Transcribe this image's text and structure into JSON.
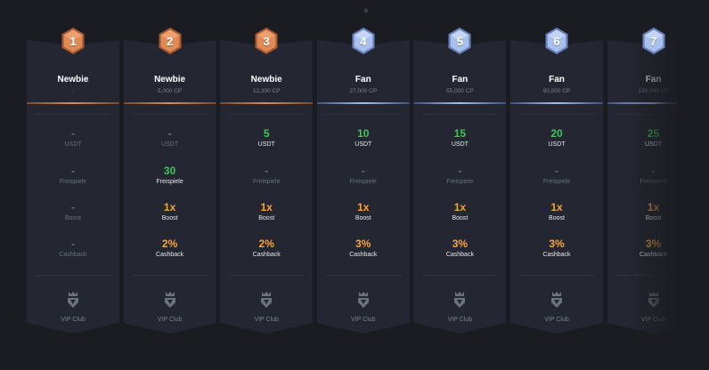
{
  "colors": {
    "background": "#1a1c22",
    "card": "#242731",
    "bronze": "#e08a56",
    "silver": "#a9c0ec",
    "green": "#3fc45c",
    "orange": "#f7a43b"
  },
  "labels": {
    "usdt": "USDT",
    "freespins": "Freispiele",
    "boost": "Boost",
    "cashback": "Cashback",
    "vip": "VIP Club"
  },
  "tiers": [
    {
      "level": "1",
      "name": "Newbie",
      "cp": "-",
      "usdt": "-",
      "freespins": "-",
      "boost": "-",
      "cashback": "-",
      "tier": "bronze",
      "vip_icon": "crown-shield-icon"
    },
    {
      "level": "2",
      "name": "Newbie",
      "cp": "5,000 CP",
      "usdt": "-",
      "freespins": "30",
      "boost": "1x",
      "cashback": "2%",
      "tier": "bronze",
      "vip_icon": "crown-shield-icon"
    },
    {
      "level": "3",
      "name": "Newbie",
      "cp": "12,300 CP",
      "usdt": "5",
      "freespins": "-",
      "boost": "1x",
      "cashback": "2%",
      "tier": "bronze",
      "vip_icon": "crown-shield-icon"
    },
    {
      "level": "4",
      "name": "Fan",
      "cp": "27,000 CP",
      "usdt": "10",
      "freespins": "-",
      "boost": "1x",
      "cashback": "3%",
      "tier": "silver",
      "vip_icon": "crown-shield-icon"
    },
    {
      "level": "5",
      "name": "Fan",
      "cp": "55,000 CP",
      "usdt": "15",
      "freespins": "-",
      "boost": "1x",
      "cashback": "3%",
      "tier": "silver",
      "vip_icon": "crown-shield-icon"
    },
    {
      "level": "6",
      "name": "Fan",
      "cp": "90,000 CP",
      "usdt": "20",
      "freespins": "-",
      "boost": "1x",
      "cashback": "3%",
      "tier": "silver",
      "vip_icon": "crown-shield-icon"
    },
    {
      "level": "7",
      "name": "Fan",
      "cp": "130,000 CP",
      "usdt": "25",
      "freespins": "-",
      "boost": "1x",
      "cashback": "3%",
      "tier": "silver",
      "vip_icon": "crown-shield-icon"
    }
  ]
}
